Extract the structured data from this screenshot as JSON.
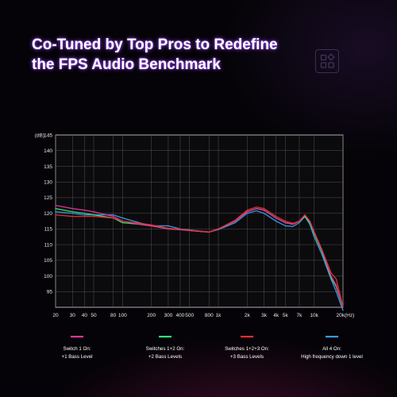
{
  "headline": {
    "line1": "Co-Tuned by Top Pros to Redefine",
    "line2": "the FPS Audio Benchmark"
  },
  "logo": {
    "icon": "grid-squares-diamond-icon"
  },
  "chart_data": {
    "type": "line",
    "ylabel_unit": "(dB)",
    "xlabel_unit": "(Hz)",
    "x_scale": "log",
    "xlim": [
      20,
      20000
    ],
    "ylim": [
      90,
      145
    ],
    "grid": true,
    "legend_placement": "bottom",
    "y_ticks": [
      145,
      140,
      135,
      130,
      125,
      120,
      115,
      110,
      105,
      100,
      95
    ],
    "x_ticks": [
      {
        "value": 20,
        "label": "20"
      },
      {
        "value": 30,
        "label": "30"
      },
      {
        "value": 40,
        "label": "40"
      },
      {
        "value": 50,
        "label": "50"
      },
      {
        "value": 80,
        "label": "80"
      },
      {
        "value": 100,
        "label": "100"
      },
      {
        "value": 200,
        "label": "200"
      },
      {
        "value": 300,
        "label": "300"
      },
      {
        "value": 400,
        "label": "400"
      },
      {
        "value": 500,
        "label": "500"
      },
      {
        "value": 800,
        "label": "800"
      },
      {
        "value": 1000,
        "label": "1k"
      },
      {
        "value": 2000,
        "label": "2k"
      },
      {
        "value": 3000,
        "label": "3k"
      },
      {
        "value": 4000,
        "label": "4k"
      },
      {
        "value": 5000,
        "label": "5k"
      },
      {
        "value": 7000,
        "label": "7k"
      },
      {
        "value": 10000,
        "label": "10k"
      },
      {
        "value": 20000,
        "label": "20k"
      }
    ],
    "series": [
      {
        "line1": "Switch 1 On:",
        "line2": "+1 Bass Level",
        "color": "#e0359a",
        "x": [
          20,
          30,
          40,
          50,
          80,
          100,
          150,
          200,
          300,
          400,
          500,
          800,
          1000,
          1500,
          2000,
          2500,
          3000,
          4000,
          5000,
          6000,
          7000,
          8000,
          9000,
          10000,
          12000,
          15000,
          17000,
          20000
        ],
        "y": [
          122.5,
          121.5,
          121,
          120.5,
          119,
          117.5,
          116.5,
          116,
          115,
          114.8,
          114.5,
          114,
          115,
          117.5,
          120.5,
          121.5,
          121,
          118.5,
          117,
          116.5,
          117.5,
          119.5,
          117.5,
          114,
          108.5,
          100,
          97,
          90
        ]
      },
      {
        "line1": "Switches 1+2 On:",
        "line2": "+2 Bass Levels",
        "color": "#35e07a",
        "x": [
          20,
          30,
          40,
          50,
          80,
          100,
          150,
          200,
          300,
          400,
          500,
          800,
          1000,
          1500,
          2000,
          2500,
          3000,
          4000,
          5000,
          6000,
          7000,
          8000,
          9000,
          10000,
          12000,
          15000,
          17000,
          20000
        ],
        "y": [
          121.5,
          120.5,
          120,
          119.5,
          118.5,
          117,
          116.5,
          116,
          115,
          114.8,
          114.5,
          114,
          115,
          117.5,
          120.5,
          121.5,
          121,
          118.5,
          117,
          116.5,
          117.5,
          119,
          117,
          113.5,
          108,
          99.5,
          96.5,
          90
        ]
      },
      {
        "line1": "Switches 1+2+3 On:",
        "line2": "+3 Bass Levels",
        "color": "#e83030",
        "x": [
          20,
          30,
          40,
          50,
          80,
          100,
          150,
          200,
          300,
          400,
          500,
          800,
          1000,
          1500,
          2000,
          2500,
          3000,
          4000,
          5000,
          6000,
          7000,
          8000,
          9000,
          10000,
          12000,
          15000,
          17000,
          20000
        ],
        "y": [
          119.5,
          119,
          119,
          119,
          118.5,
          117.5,
          116.8,
          116.3,
          115.2,
          114.9,
          114.6,
          114,
          115,
          117.8,
          121,
          122,
          121.5,
          119,
          117.5,
          116.8,
          117.5,
          119.5,
          117.5,
          114,
          108.5,
          101,
          99,
          90
        ]
      },
      {
        "line1": "All 4 On:",
        "line2": "High frequency down 1 level",
        "color": "#3a9bea",
        "x": [
          20,
          30,
          40,
          50,
          80,
          100,
          150,
          200,
          300,
          400,
          500,
          800,
          1000,
          1500,
          2000,
          2500,
          3000,
          4000,
          5000,
          6000,
          7000,
          8000,
          9000,
          10000,
          12000,
          15000,
          17000,
          20000
        ],
        "y": [
          120.5,
          120,
          119.5,
          119.5,
          119.5,
          118.5,
          117,
          116,
          116,
          115,
          114.7,
          114,
          114.8,
          117,
          120,
          120.8,
          120,
          117.5,
          116,
          115.8,
          117,
          119,
          116.5,
          112.5,
          107,
          99,
          95,
          89
        ]
      }
    ]
  }
}
